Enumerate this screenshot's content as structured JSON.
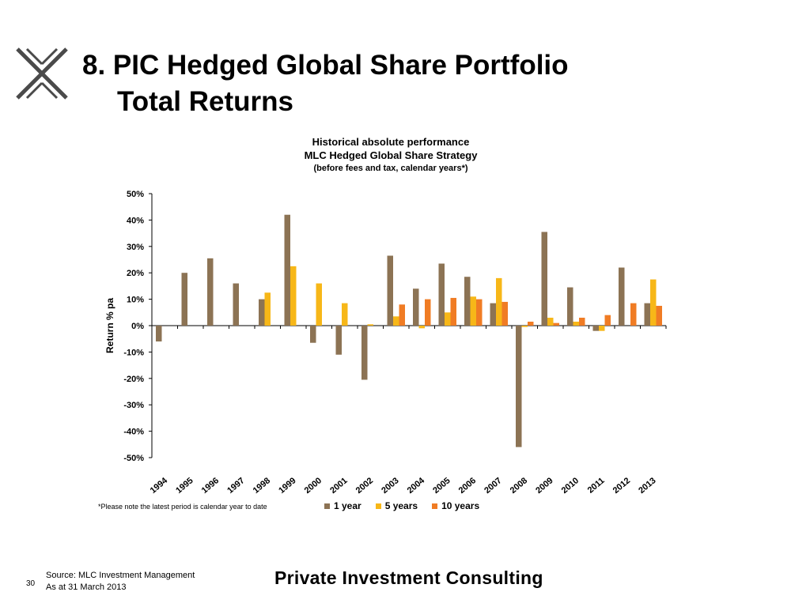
{
  "slide": {
    "title_line1": "8. PIC Hedged Global Share Portfolio",
    "title_line2": "Total Returns",
    "page_number": "30",
    "source_line1": "Source: MLC Investment Management",
    "source_line2": "As at 31 March 2013",
    "brand": "Private Investment Consulting",
    "note": "*Please note the latest period is calendar year to date"
  },
  "colors": {
    "one_year": "#8c7354",
    "five_years": "#f7b718",
    "ten_years": "#f07c24",
    "logo": "#4a4a4a"
  },
  "chart_data": {
    "type": "bar",
    "title": "Historical absolute performance",
    "subtitle": "MLC Hedged Global Share Strategy",
    "subtitle2": "(before fees and tax, calendar years*)",
    "xlabel": "",
    "ylabel": "Return % pa",
    "ylim": [
      -50,
      50
    ],
    "yticks": [
      "50%",
      "40%",
      "30%",
      "20%",
      "10%",
      "0%",
      "-10%",
      "-20%",
      "-30%",
      "-40%",
      "-50%"
    ],
    "grid": false,
    "legend_position": "bottom",
    "categories": [
      "1994",
      "1995",
      "1996",
      "1997",
      "1998",
      "1999",
      "2000",
      "2001",
      "2002",
      "2003",
      "2004",
      "2005",
      "2006",
      "2007",
      "2008",
      "2009",
      "2010",
      "2011",
      "2012",
      "2013"
    ],
    "series": [
      {
        "name": "1 year",
        "color": "#8c7354",
        "values": [
          -6,
          20,
          25.5,
          16,
          10,
          42,
          -6.5,
          -11,
          -20.5,
          26.5,
          14,
          23.5,
          18.5,
          8.5,
          -46,
          35.5,
          14.5,
          -2,
          22,
          8.5
        ]
      },
      {
        "name": "5 years",
        "color": "#f7b718",
        "values": [
          null,
          null,
          null,
          null,
          12.5,
          22.5,
          16,
          8.5,
          0.5,
          3.5,
          -1,
          5,
          11,
          18,
          -0.5,
          3,
          1.5,
          -2,
          null,
          17.5
        ]
      },
      {
        "name": "10 years",
        "color": "#f07c24",
        "values": [
          null,
          null,
          null,
          null,
          null,
          null,
          null,
          null,
          null,
          8,
          10,
          10.5,
          10,
          9,
          1.5,
          1,
          3,
          4,
          8.5,
          7.5
        ]
      }
    ]
  }
}
